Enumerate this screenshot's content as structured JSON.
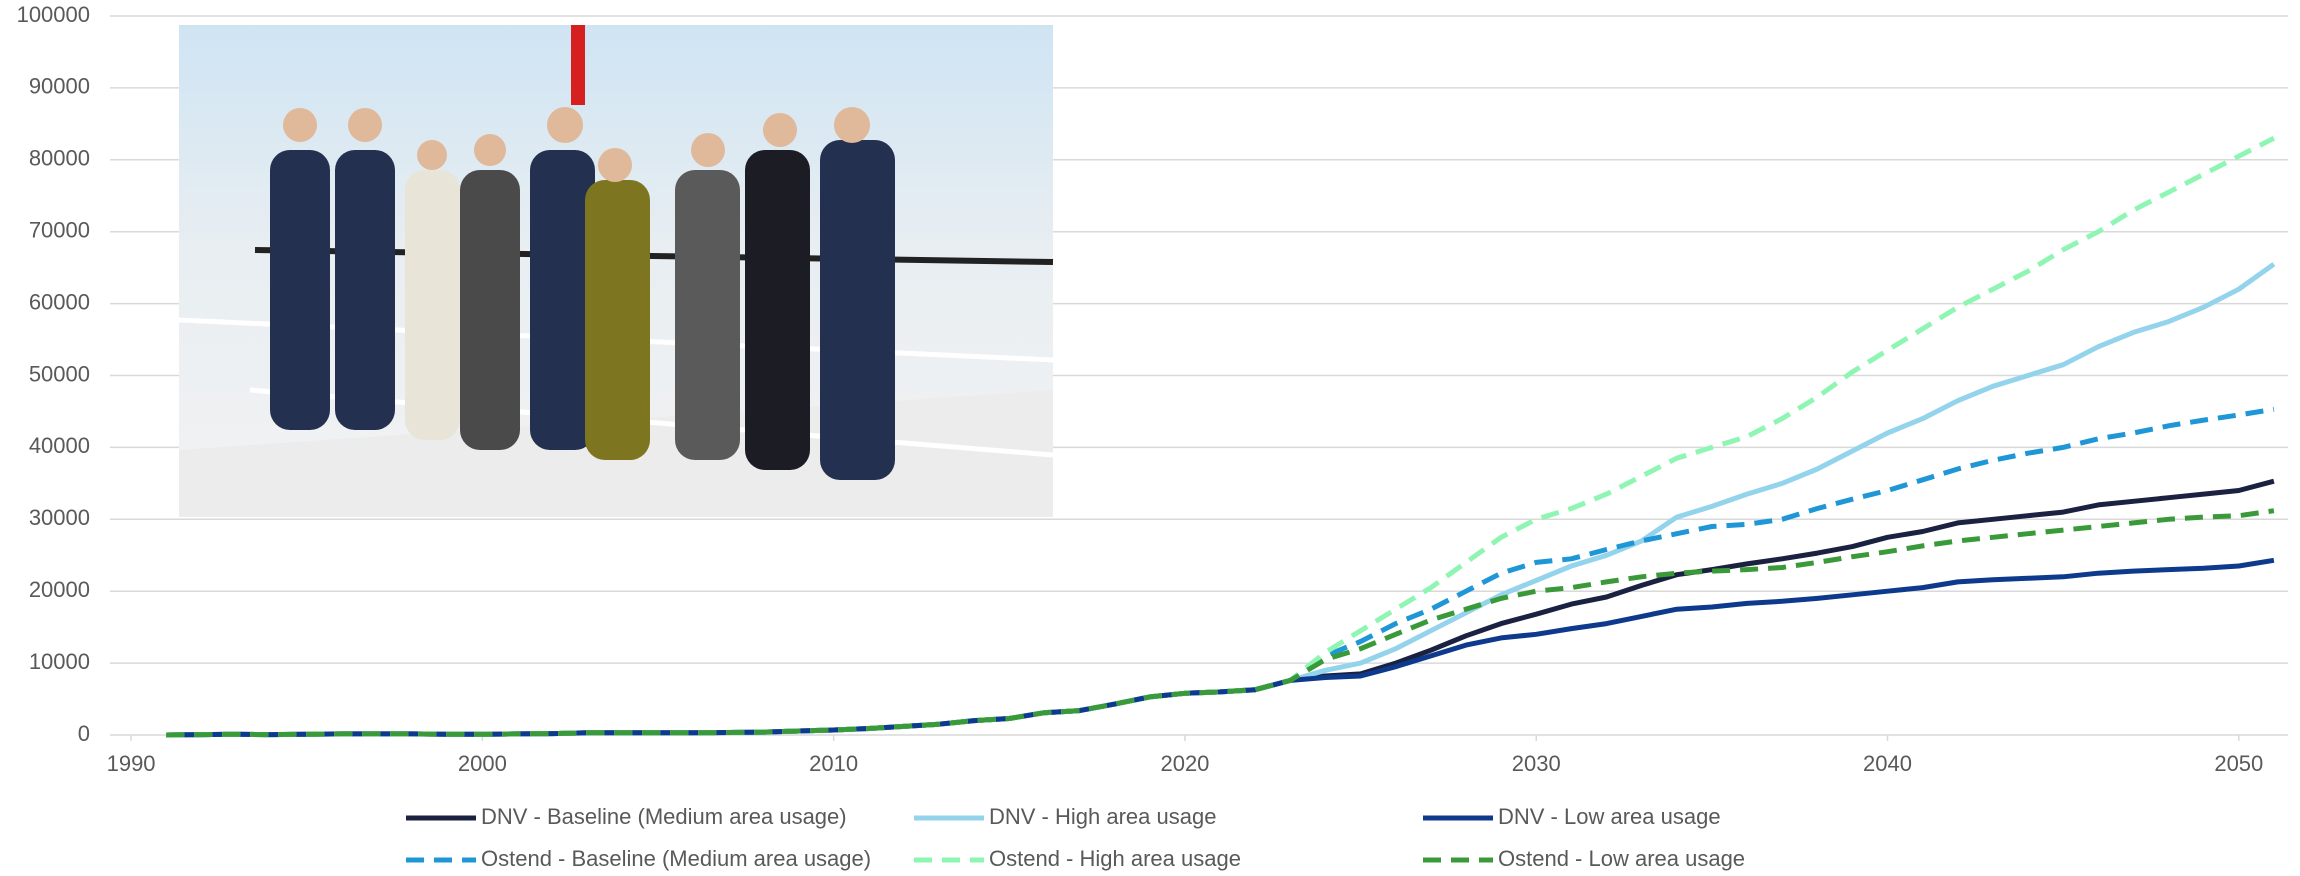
{
  "chart_data": {
    "type": "line",
    "x": [
      1991,
      1992,
      1993,
      1994,
      1995,
      1996,
      1997,
      1998,
      1999,
      2000,
      2001,
      2002,
      2003,
      2004,
      2005,
      2006,
      2007,
      2008,
      2009,
      2010,
      2011,
      2012,
      2013,
      2014,
      2015,
      2016,
      2017,
      2018,
      2019,
      2020,
      2021,
      2022,
      2023,
      2024,
      2025,
      2026,
      2027,
      2028,
      2029,
      2030,
      2031,
      2032,
      2033,
      2034,
      2035,
      2036,
      2037,
      2038,
      2039,
      2040,
      2041,
      2042,
      2043,
      2044,
      2045,
      2046,
      2047,
      2048,
      2049,
      2050,
      2051
    ],
    "xlim": [
      1989.4,
      2051.4
    ],
    "xticks": [
      1990,
      2000,
      2010,
      2020,
      2030,
      2040,
      2050
    ],
    "ylim": [
      0,
      100000
    ],
    "yticks": [
      0,
      10000,
      20000,
      30000,
      40000,
      50000,
      60000,
      70000,
      80000,
      90000,
      100000
    ],
    "grid": true,
    "series": [
      {
        "name": "DNV - Baseline (Medium area usage)",
        "color": "#1b2140",
        "style": "solid",
        "values": [
          0,
          50,
          100,
          50,
          100,
          150,
          150,
          150,
          100,
          100,
          150,
          200,
          300,
          300,
          300,
          300,
          350,
          400,
          550,
          700,
          900,
          1200,
          1500,
          2000,
          2300,
          3100,
          3400,
          4300,
          5300,
          5800,
          6000,
          6300,
          7600,
          8200,
          8500,
          10000,
          11800,
          13800,
          15500,
          16800,
          18200,
          19200,
          20800,
          22300,
          23000,
          23800,
          24500,
          25300,
          26200,
          27500,
          28300,
          29500,
          30000,
          30500,
          31000,
          32000,
          32500,
          33000,
          33500,
          34000,
          35300
        ]
      },
      {
        "name": "DNV - High area usage",
        "color": "#93d3ec",
        "style": "solid",
        "values": [
          0,
          50,
          100,
          50,
          100,
          150,
          150,
          150,
          100,
          100,
          150,
          200,
          300,
          300,
          300,
          300,
          350,
          400,
          550,
          700,
          900,
          1200,
          1500,
          2000,
          2300,
          3100,
          3400,
          4300,
          5300,
          5800,
          6000,
          6300,
          7600,
          9000,
          10000,
          12000,
          14500,
          17000,
          19500,
          21500,
          23500,
          25000,
          27000,
          30300,
          31800,
          33500,
          35000,
          37000,
          39500,
          42000,
          44000,
          46500,
          48500,
          50000,
          51500,
          54000,
          56000,
          57500,
          59500,
          62000,
          65500
        ]
      },
      {
        "name": "DNV - Low area usage",
        "color": "#0d3a8c",
        "style": "solid",
        "values": [
          0,
          50,
          100,
          50,
          100,
          150,
          150,
          150,
          100,
          100,
          150,
          200,
          300,
          300,
          300,
          300,
          350,
          400,
          550,
          700,
          900,
          1200,
          1500,
          2000,
          2300,
          3100,
          3400,
          4300,
          5300,
          5800,
          6000,
          6300,
          7600,
          8000,
          8200,
          9500,
          11000,
          12500,
          13500,
          14000,
          14800,
          15500,
          16500,
          17500,
          17800,
          18300,
          18600,
          19000,
          19500,
          20000,
          20500,
          21300,
          21600,
          21800,
          22000,
          22500,
          22800,
          23000,
          23200,
          23500,
          24300
        ]
      },
      {
        "name": "Ostend - Baseline (Medium area usage)",
        "color": "#1f96d6",
        "style": "dashed",
        "values": [
          0,
          50,
          100,
          50,
          100,
          150,
          150,
          150,
          100,
          100,
          150,
          200,
          300,
          300,
          300,
          300,
          350,
          400,
          550,
          700,
          900,
          1200,
          1500,
          2000,
          2300,
          3100,
          3400,
          4300,
          5300,
          5800,
          6000,
          6300,
          7600,
          11000,
          13000,
          15500,
          17500,
          20000,
          22500,
          24000,
          24500,
          25800,
          27000,
          28000,
          29000,
          29300,
          30000,
          31500,
          32800,
          34000,
          35500,
          37000,
          38200,
          39200,
          40000,
          41200,
          42000,
          43000,
          43800,
          44500,
          45300
        ]
      },
      {
        "name": "Ostend - High area usage",
        "color": "#8ef5b3",
        "style": "dashed",
        "values": [
          0,
          50,
          100,
          50,
          100,
          150,
          150,
          150,
          100,
          100,
          150,
          200,
          300,
          300,
          300,
          300,
          350,
          400,
          550,
          700,
          900,
          1200,
          1500,
          2000,
          2300,
          3100,
          3400,
          4300,
          5300,
          5800,
          6000,
          6300,
          7600,
          11500,
          14500,
          17500,
          20500,
          24000,
          27500,
          30000,
          31500,
          33500,
          36000,
          38500,
          40000,
          41500,
          44000,
          47000,
          50500,
          53500,
          56500,
          59500,
          62000,
          64500,
          67500,
          70000,
          73000,
          75500,
          78000,
          80500,
          83000
        ]
      },
      {
        "name": "Ostend - Low area usage",
        "color": "#3a9a3a",
        "style": "dashed",
        "values": [
          0,
          50,
          100,
          50,
          100,
          150,
          150,
          150,
          100,
          100,
          150,
          200,
          300,
          300,
          300,
          300,
          350,
          400,
          550,
          700,
          900,
          1200,
          1500,
          2000,
          2300,
          3100,
          3400,
          4300,
          5300,
          5800,
          6000,
          6300,
          7600,
          10500,
          12000,
          14000,
          16000,
          17500,
          19000,
          20000,
          20500,
          21300,
          22000,
          22500,
          22800,
          23000,
          23300,
          24000,
          24800,
          25500,
          26300,
          27000,
          27500,
          28000,
          28500,
          29000,
          29500,
          30000,
          30300,
          30500,
          31200
        ]
      }
    ]
  }
}
